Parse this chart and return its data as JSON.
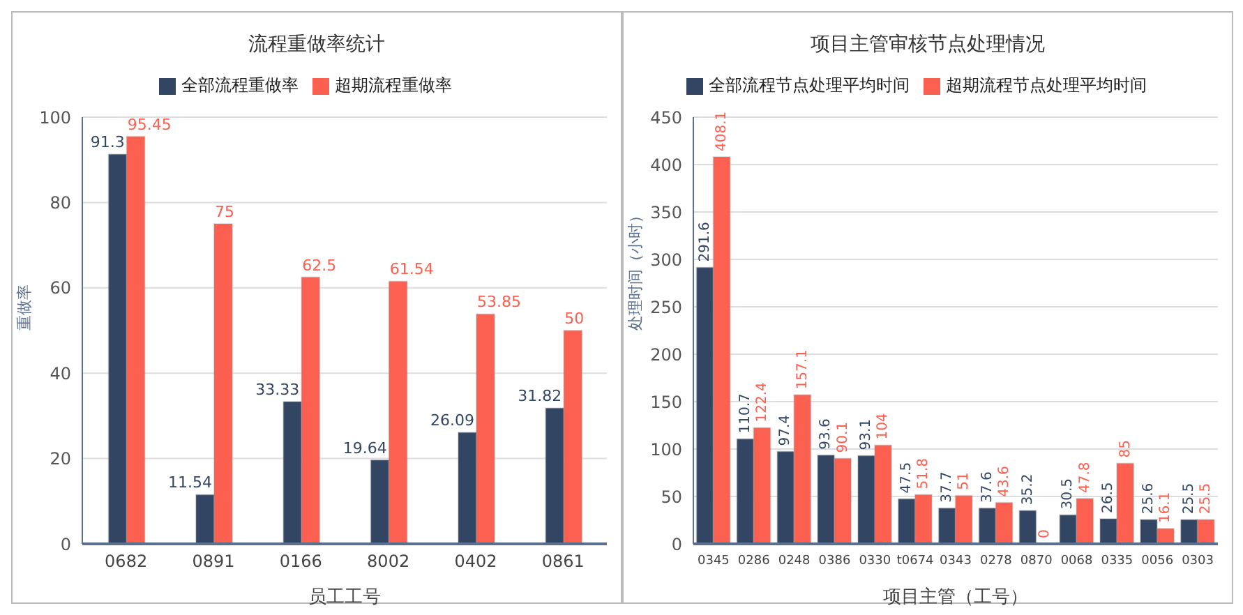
{
  "chart_data": [
    {
      "type": "bar",
      "title": "流程重做率统计",
      "xlabel": "员工工号",
      "ylabel": "重做率",
      "categories": [
        "0682",
        "0891",
        "0166",
        "8002",
        "0402",
        "0861"
      ],
      "series": [
        {
          "name": "全部流程重做率",
          "color": "#324664",
          "values": [
            91.3,
            11.54,
            33.33,
            19.64,
            26.09,
            31.82
          ]
        },
        {
          "name": "超期流程重做率",
          "color": "#fb6050",
          "values": [
            95.45,
            75,
            62.5,
            61.54,
            53.85,
            50
          ]
        }
      ],
      "ylim": [
        0,
        100
      ],
      "yticks": [
        0,
        20,
        40,
        60,
        80,
        100
      ],
      "grid": "y",
      "legend": "top",
      "data_labels": true
    },
    {
      "type": "bar",
      "title": "项目主管审核节点处理情况",
      "xlabel": "项目主管（工号）",
      "ylabel": "处理时间（小时）",
      "categories": [
        "0345",
        "0286",
        "0248",
        "0386",
        "0330",
        "t0674",
        "0343",
        "0278",
        "0870",
        "0068",
        "0335",
        "0056",
        "0303"
      ],
      "series": [
        {
          "name": "全部流程节点处理平均时间",
          "color": "#324664",
          "values": [
            291.6,
            110.7,
            97.4,
            93.6,
            93.1,
            47.5,
            37.7,
            37.6,
            35.2,
            30.5,
            26.5,
            25.6,
            25.5
          ]
        },
        {
          "name": "超期流程节点处理平均时间",
          "color": "#fb6050",
          "values": [
            408.1,
            122.4,
            157.1,
            90.1,
            104,
            51.8,
            51,
            43.6,
            0,
            47.8,
            85,
            16.1,
            25.5
          ]
        }
      ],
      "ylim": [
        0,
        450
      ],
      "yticks": [
        0,
        50,
        100,
        150,
        200,
        250,
        300,
        350,
        400,
        450
      ],
      "grid": "y",
      "legend": "top",
      "data_labels": true
    }
  ]
}
